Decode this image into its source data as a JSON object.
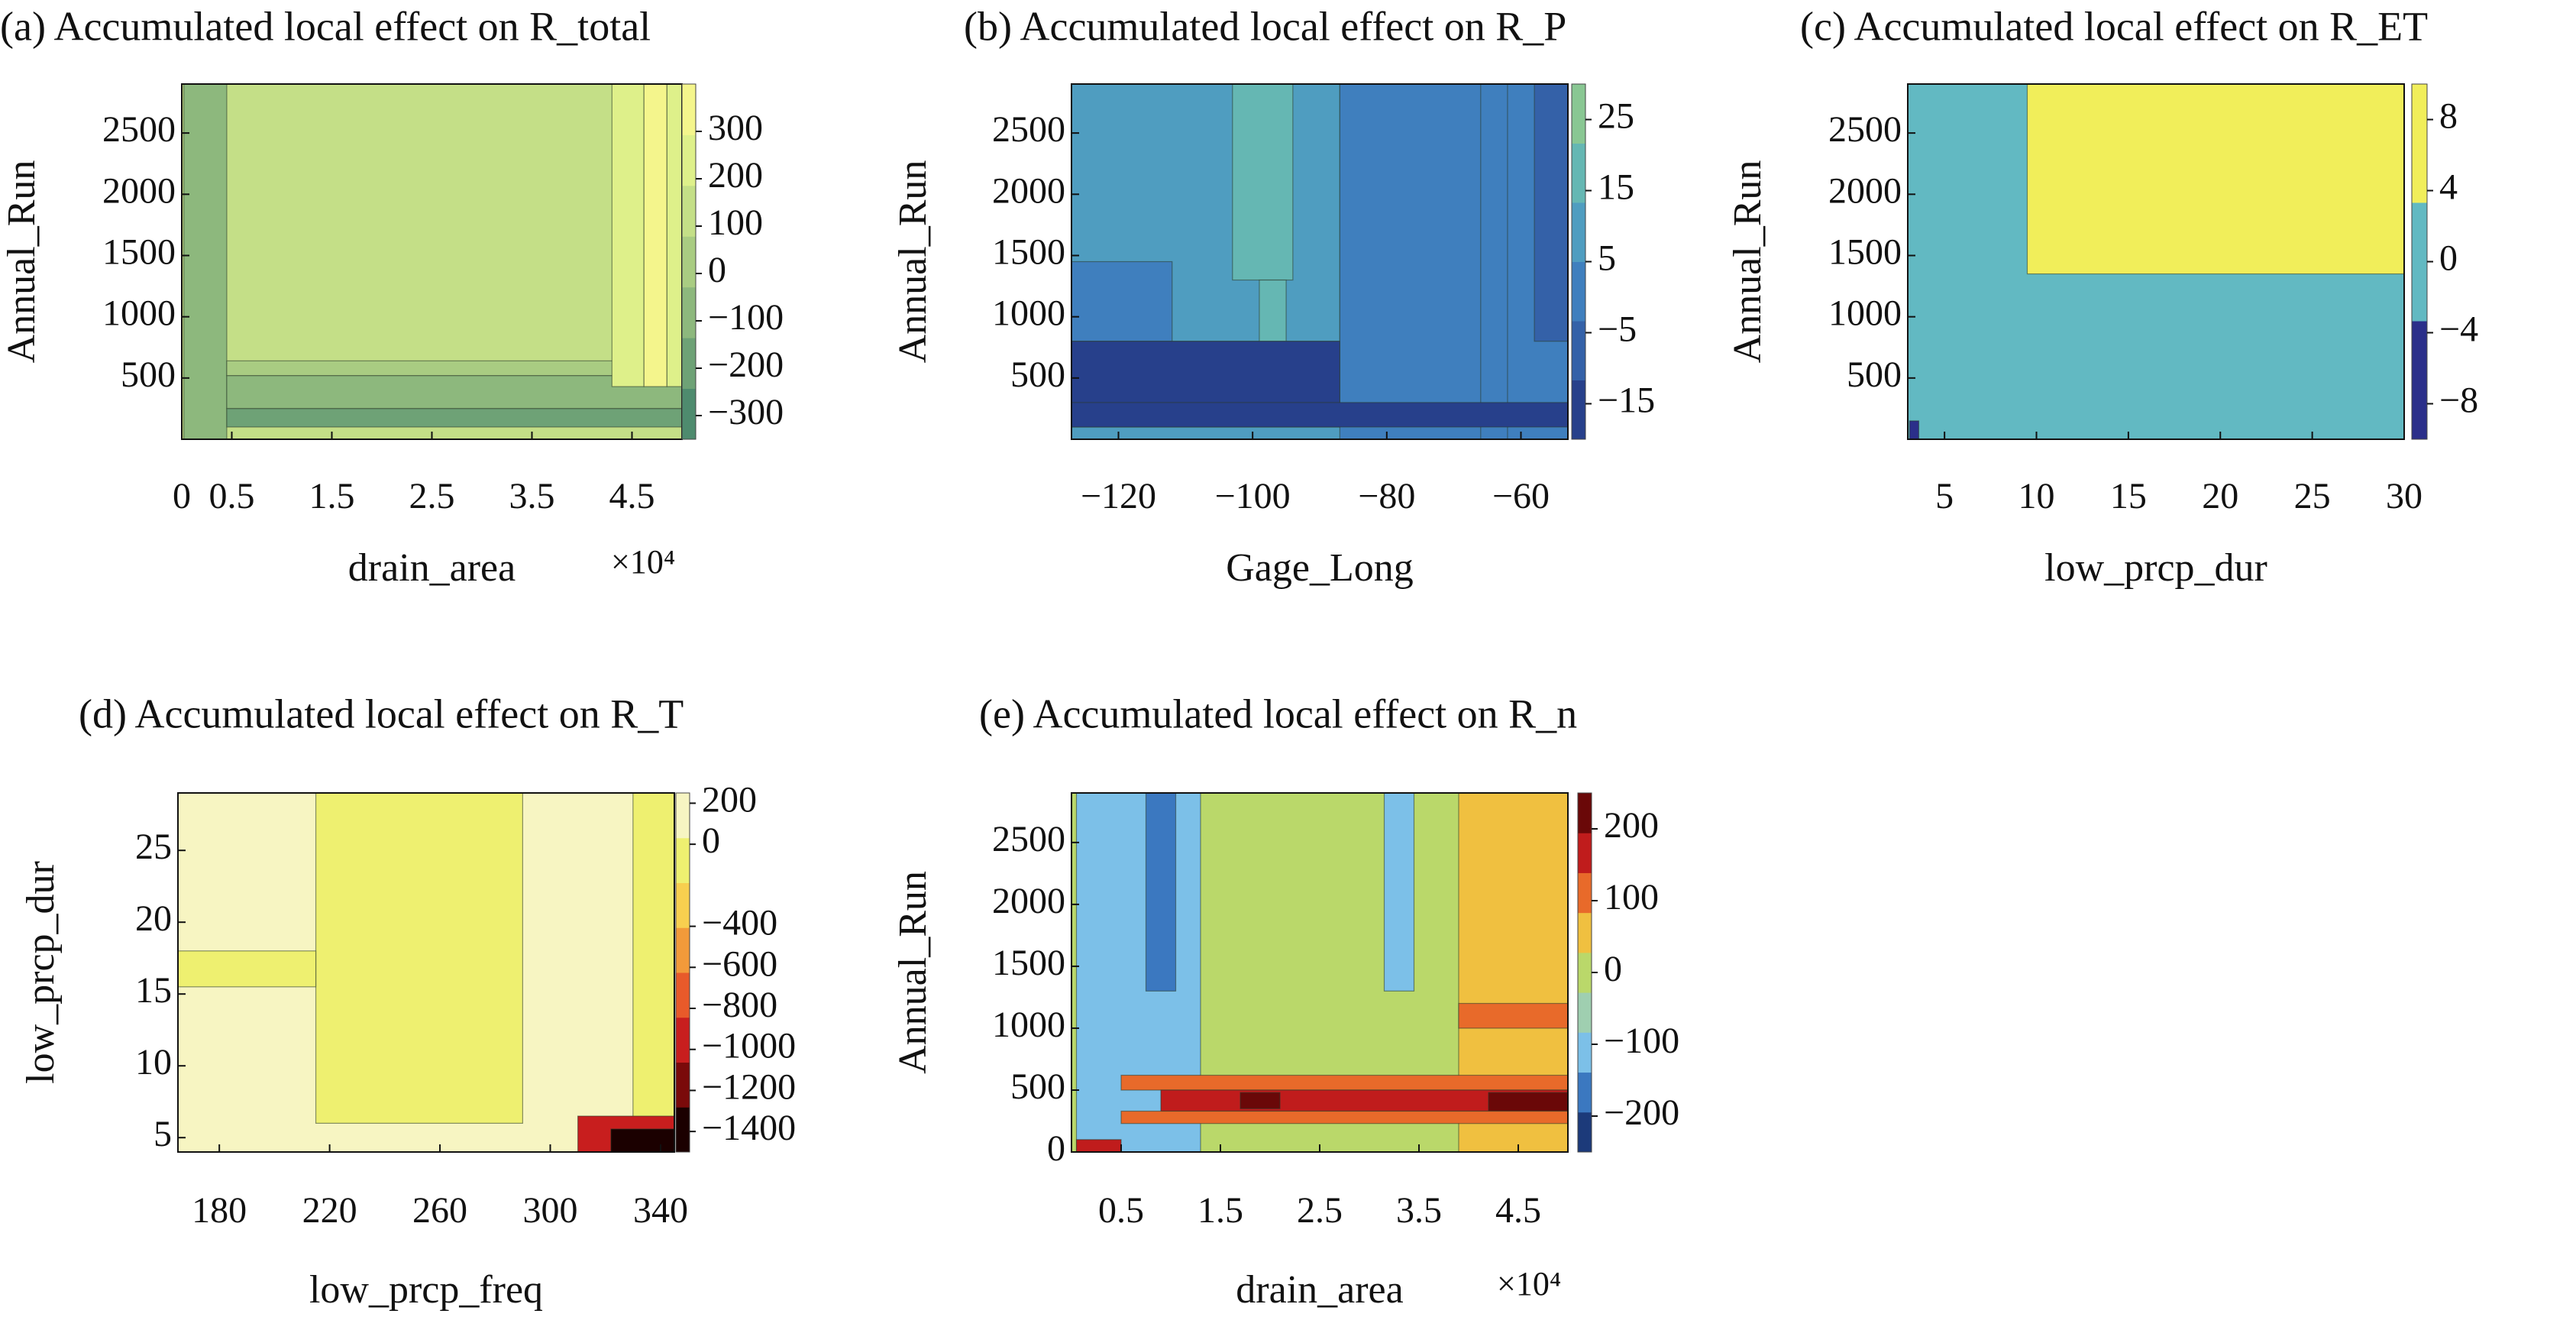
{
  "chart_data": [
    {
      "type": "heatmap",
      "title": "(a) Accumulated local effect on R_total",
      "xlabel": "drain_area",
      "ylabel": "Annual_Run",
      "x_multiplier": "×10⁴",
      "xlim": [
        0,
        5
      ],
      "ylim": [
        0,
        2900
      ],
      "x_ticks": [
        0,
        0.5,
        1.5,
        2.5,
        3.5,
        4.5
      ],
      "x_tick_labels": [
        "0",
        "0.5",
        "1.5",
        "2.5",
        "3.5",
        "4.5"
      ],
      "y_ticks": [
        500,
        1000,
        1500,
        2000,
        2500
      ],
      "y_tick_labels": [
        "500",
        "1000",
        "1500",
        "2000",
        "2500"
      ],
      "colorbar": {
        "ticks": [
          -300,
          -200,
          -100,
          0,
          100,
          200,
          300
        ],
        "tick_labels": [
          "−300",
          "−200",
          "−100",
          "0",
          "100",
          "200",
          "300"
        ],
        "range": [
          -350,
          400
        ],
        "colors": [
          "#4e8b6e",
          "#6ea276",
          "#8db87d",
          "#a9cc82",
          "#c4df87",
          "#def08a",
          "#f4f58c"
        ]
      },
      "regions": [
        {
          "x0": 0,
          "x1": 5,
          "y0": 0,
          "y1": 2900,
          "v": 100
        },
        {
          "x0": 0.02,
          "x1": 0.45,
          "y0": 0,
          "y1": 2900,
          "v": -100
        },
        {
          "x0": 0.45,
          "x1": 5,
          "y0": 250,
          "y1": 520,
          "v": -100
        },
        {
          "x0": 0.45,
          "x1": 5,
          "y0": 520,
          "y1": 640,
          "v": 0
        },
        {
          "x0": 4.3,
          "x1": 4.62,
          "y0": 430,
          "y1": 2900,
          "v": 200
        },
        {
          "x0": 4.62,
          "x1": 4.85,
          "y0": 430,
          "y1": 2900,
          "v": 330
        },
        {
          "x0": 4.85,
          "x1": 5,
          "y0": 430,
          "y1": 2900,
          "v": 200
        },
        {
          "x0": 0.45,
          "x1": 5,
          "y0": 100,
          "y1": 250,
          "v": -200
        }
      ]
    },
    {
      "type": "heatmap",
      "title": "(b) Accumulated local effect on R_P",
      "xlabel": "Gage_Long",
      "ylabel": "Annual_Run",
      "xlim": [
        -127,
        -53
      ],
      "ylim": [
        0,
        2900
      ],
      "x_ticks": [
        -120,
        -100,
        -80,
        -60
      ],
      "x_tick_labels": [
        "−120",
        "−100",
        "−80",
        "−60"
      ],
      "y_ticks": [
        500,
        1000,
        1500,
        2000,
        2500
      ],
      "y_tick_labels": [
        "500",
        "1000",
        "1500",
        "2000",
        "2500"
      ],
      "colorbar": {
        "ticks": [
          -15,
          -5,
          5,
          15,
          25
        ],
        "tick_labels": [
          "−15",
          "−5",
          "5",
          "15",
          "25"
        ],
        "range": [
          -20,
          30
        ],
        "colors": [
          "#27408b",
          "#3461a8",
          "#3f7fbe",
          "#4f9dc0",
          "#65b7b3",
          "#89c793"
        ]
      },
      "regions": [
        {
          "x0": -127,
          "x1": -53,
          "y0": 0,
          "y1": 2900,
          "v": 10
        },
        {
          "x0": -127,
          "x1": -87,
          "y0": 800,
          "y1": 2900,
          "v": 12
        },
        {
          "x0": -127,
          "x1": -112,
          "y0": 800,
          "y1": 1450,
          "v": 0
        },
        {
          "x0": -103,
          "x1": -94,
          "y0": 1300,
          "y1": 2900,
          "v": 20
        },
        {
          "x0": -99,
          "x1": -95,
          "y0": 800,
          "y1": 1300,
          "v": 20
        },
        {
          "x0": -87,
          "x1": -53,
          "y0": 0,
          "y1": 2900,
          "v": 0
        },
        {
          "x0": -66,
          "x1": -62,
          "y0": 0,
          "y1": 2900,
          "v": -3
        },
        {
          "x0": -58,
          "x1": -53,
          "y0": 800,
          "y1": 2900,
          "v": -6
        },
        {
          "x0": -127,
          "x1": -87,
          "y0": 100,
          "y1": 800,
          "v": -12
        },
        {
          "x0": -127,
          "x1": -53,
          "y0": 100,
          "y1": 300,
          "v": -16
        }
      ]
    },
    {
      "type": "heatmap",
      "title": "(c) Accumulated local effect on R_ET",
      "xlabel": "low_prcp_dur",
      "ylabel": "Annual_Run",
      "xlim": [
        3,
        30
      ],
      "ylim": [
        0,
        2900
      ],
      "x_ticks": [
        5,
        10,
        15,
        20,
        25,
        30
      ],
      "x_tick_labels": [
        "5",
        "10",
        "15",
        "20",
        "25",
        "30"
      ],
      "y_ticks": [
        500,
        1000,
        1500,
        2000,
        2500
      ],
      "y_tick_labels": [
        "500",
        "1000",
        "1500",
        "2000",
        "2500"
      ],
      "colorbar": {
        "ticks": [
          -8,
          -4,
          0,
          4,
          8
        ],
        "tick_labels": [
          "−8",
          "−4",
          "0",
          "4",
          "8"
        ],
        "range": [
          -10,
          10
        ],
        "colors": [
          "#2b2f8a",
          "#62b9c2",
          "#f1ee5a"
        ]
      },
      "regions": [
        {
          "x0": 3,
          "x1": 30,
          "y0": 0,
          "y1": 2900,
          "v": 0
        },
        {
          "x0": 9.5,
          "x1": 30,
          "y0": 1350,
          "y1": 2900,
          "v": 6
        },
        {
          "x0": 3.1,
          "x1": 3.6,
          "y0": 0,
          "y1": 150,
          "v": -8
        }
      ]
    },
    {
      "type": "heatmap",
      "title": "(d) Accumulated local effect on R_T",
      "xlabel": "low_prcp_freq",
      "ylabel": "low_prcp_dur",
      "xlim": [
        165,
        345
      ],
      "ylim": [
        4,
        29
      ],
      "x_ticks": [
        180,
        220,
        260,
        300,
        340
      ],
      "x_tick_labels": [
        "180",
        "220",
        "260",
        "300",
        "340"
      ],
      "y_ticks": [
        5,
        10,
        15,
        20,
        25
      ],
      "y_tick_labels": [
        "5",
        "10",
        "15",
        "20",
        "25"
      ],
      "colorbar": {
        "ticks": [
          -1400,
          -1200,
          -1000,
          -800,
          -600,
          -400,
          0,
          200
        ],
        "tick_labels": [
          "−1400",
          "−1200",
          "−1000",
          "−800",
          "−600",
          "−400",
          "0",
          "200"
        ],
        "range": [
          -1500,
          250
        ],
        "colors": [
          "#1b0000",
          "#7a0a0a",
          "#c81e1e",
          "#e85a2a",
          "#f29a3a",
          "#f8cf4f",
          "#eef070",
          "#f7f5c2"
        ]
      },
      "regions": [
        {
          "x0": 165,
          "x1": 345,
          "y0": 4,
          "y1": 29,
          "v": 100
        },
        {
          "x0": 215,
          "x1": 290,
          "y0": 6,
          "y1": 29,
          "v": -100
        },
        {
          "x0": 165,
          "x1": 215,
          "y0": 15.5,
          "y1": 18,
          "v": -100
        },
        {
          "x0": 330,
          "x1": 345,
          "y0": 4,
          "y1": 29,
          "v": -100
        },
        {
          "x0": 310,
          "x1": 345,
          "y0": 4,
          "y1": 6.5,
          "v": -900
        },
        {
          "x0": 322,
          "x1": 345,
          "y0": 4,
          "y1": 5.6,
          "v": -1300
        }
      ]
    },
    {
      "type": "heatmap",
      "title": "(e) Accumulated local effect on R_n",
      "xlabel": "drain_area",
      "ylabel": "Annual_Run",
      "x_multiplier": "×10⁴",
      "xlim": [
        0,
        5
      ],
      "ylim": [
        0,
        2900
      ],
      "x_ticks": [
        0.5,
        1.5,
        2.5,
        3.5,
        4.5
      ],
      "x_tick_labels": [
        "0.5",
        "1.5",
        "2.5",
        "3.5",
        "4.5"
      ],
      "y_ticks": [
        0,
        500,
        1000,
        1500,
        2000,
        2500
      ],
      "y_tick_labels": [
        "0",
        "500",
        "1000",
        "1500",
        "2000",
        "2500"
      ],
      "colorbar": {
        "ticks": [
          -200,
          -100,
          0,
          100,
          200
        ],
        "tick_labels": [
          "−200",
          "−100",
          "0",
          "100",
          "200"
        ],
        "range": [
          -250,
          250
        ],
        "colors": [
          "#1c3a7a",
          "#3b78c0",
          "#7cc0e8",
          "#9fcfb0",
          "#bad86a",
          "#f0c040",
          "#e86a2a",
          "#c01c1c",
          "#6a0808"
        ]
      },
      "regions": [
        {
          "x0": 0,
          "x1": 5,
          "y0": 0,
          "y1": 2900,
          "v": 0
        },
        {
          "x0": 0.05,
          "x1": 1.3,
          "y0": 0,
          "y1": 2900,
          "v": -100
        },
        {
          "x0": 0.75,
          "x1": 1.05,
          "y0": 1300,
          "y1": 2900,
          "v": -180
        },
        {
          "x0": 3.15,
          "x1": 3.45,
          "y0": 1300,
          "y1": 2900,
          "v": -100
        },
        {
          "x0": 3.9,
          "x1": 5,
          "y0": 0,
          "y1": 2900,
          "v": 60
        },
        {
          "x0": 3.9,
          "x1": 5,
          "y0": 1000,
          "y1": 1200,
          "v": 110
        },
        {
          "x0": 0.5,
          "x1": 5,
          "y0": 500,
          "y1": 620,
          "v": 110
        },
        {
          "x0": 0.9,
          "x1": 5,
          "y0": 330,
          "y1": 500,
          "v": 160
        },
        {
          "x0": 1.7,
          "x1": 2.1,
          "y0": 350,
          "y1": 480,
          "v": 210
        },
        {
          "x0": 4.2,
          "x1": 5,
          "y0": 330,
          "y1": 480,
          "v": 210
        },
        {
          "x0": 0.5,
          "x1": 5,
          "y0": 230,
          "y1": 330,
          "v": 110
        },
        {
          "x0": 0.05,
          "x1": 0.5,
          "y0": 0,
          "y1": 100,
          "v": 160
        }
      ]
    }
  ]
}
